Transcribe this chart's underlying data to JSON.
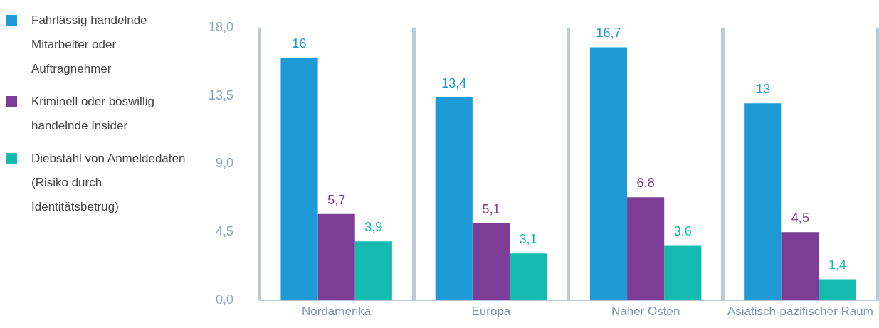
{
  "chart_data": {
    "type": "bar",
    "categories": [
      "Nordamerika",
      "Europa",
      "Naher Osten",
      "Asiatisch-pazifischer Raum"
    ],
    "series": [
      {
        "name": "Fahrlässig handelnde Mitarbeiter oder Auftragnehmer",
        "color": "#1e9ad6",
        "values": [
          16,
          13.4,
          16.7,
          13
        ],
        "value_labels": [
          "16",
          "13,4",
          "16,7",
          "13"
        ]
      },
      {
        "name": "Kriminell oder böswillig handelnde Insider",
        "color": "#7d3c96",
        "values": [
          5.7,
          5.1,
          6.8,
          4.5
        ],
        "value_labels": [
          "5,7",
          "5,1",
          "6,8",
          "4,5"
        ]
      },
      {
        "name": "Diebstahl von Anmeldedaten (Risiko durch Identitätsbetrug)",
        "color": "#14b9b0",
        "values": [
          3.9,
          3.1,
          3.6,
          1.4
        ],
        "value_labels": [
          "3,9",
          "3,1",
          "3,6",
          "1,4"
        ]
      }
    ],
    "ylim": [
      0,
      18
    ],
    "yticks": [
      {
        "value": 0,
        "label": "0,0"
      },
      {
        "value": 4.5,
        "label": "4,5"
      },
      {
        "value": 9,
        "label": "9,0"
      },
      {
        "value": 13.5,
        "label": "13,5"
      },
      {
        "value": 18,
        "label": "18,0"
      }
    ],
    "grid": "x",
    "legend": "left"
  }
}
